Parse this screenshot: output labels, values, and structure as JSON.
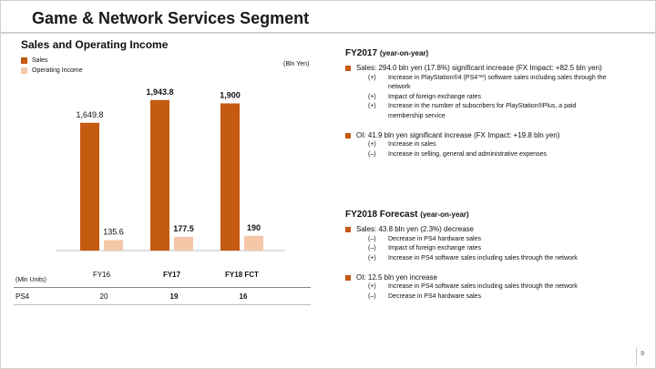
{
  "header": {
    "title": "Game & Network Services Segment"
  },
  "left": {
    "subtitle": "Sales and Operating Income",
    "legend": [
      {
        "label": "Sales",
        "color": "#c55a11"
      },
      {
        "label": "Operating Income",
        "color": "#f4c7a9"
      }
    ],
    "unit_note": "(Bln Yen)"
  },
  "chart_data": {
    "type": "bar",
    "categories": [
      "FY16",
      "FY17",
      "FY18 FCT"
    ],
    "series": [
      {
        "name": "Sales",
        "values": [
          1649.8,
          1943.8,
          1900
        ],
        "labels": [
          "1,649.8",
          "1,943.8",
          "1,900"
        ],
        "color": "#c55a11"
      },
      {
        "name": "Operating Income",
        "values": [
          135.6,
          177.5,
          190
        ],
        "labels": [
          "135.6",
          "177.5",
          "190"
        ],
        "color": "#f4c7a9"
      }
    ],
    "ylim": [
      0,
      2000
    ],
    "grid": false,
    "legend_position": "top-left"
  },
  "units_table": {
    "units_label": "(Mln Units)",
    "row_label": "PS4",
    "values": [
      "20",
      "19",
      "16"
    ]
  },
  "fy2017": {
    "title": "FY2017",
    "title_suffix": "(year-on-year)",
    "sales": {
      "text": "Sales: 294.0 bln yen (17.8%) significant increase (FX Impact: +82.5 bln yen)",
      "items": [
        {
          "sign": "(+)",
          "text": "Increase in PlayStation®4 (PS4™) software sales including sales through the"
        },
        {
          "sign": "",
          "text": "network"
        },
        {
          "sign": "(+)",
          "text": "Impact of foreign exchange rates"
        },
        {
          "sign": "(+)",
          "text": "Increase in the number of subscribers for PlayStation®Plus, a paid"
        },
        {
          "sign": "",
          "text": "membership service"
        }
      ]
    },
    "oi": {
      "text": "OI: 41.9 bln yen significant increase (FX Impact: +19.8 bln yen)",
      "items": [
        {
          "sign": "(+)",
          "text": "Increase in sales"
        },
        {
          "sign": "(–)",
          "text": "Increase in selling, general and administrative expenses"
        }
      ]
    }
  },
  "fy2018": {
    "title": "FY2018 Forecast",
    "title_suffix": "(year-on-year)",
    "sales": {
      "text": "Sales: 43.8 bln yen (2.3%) decrease",
      "items": [
        {
          "sign": "(–)",
          "text": "Decrease in PS4 hardware sales"
        },
        {
          "sign": "(–)",
          "text": "Impact of foreign exchange rates"
        },
        {
          "sign": "(+)",
          "text": "Increase in PS4 software sales including sales through the network"
        }
      ]
    },
    "oi": {
      "text": "OI: 12.5 bln yen increase",
      "items": [
        {
          "sign": "(+)",
          "text": "Increase in PS4 software sales including sales through the network"
        },
        {
          "sign": "(–)",
          "text": "Decrease in PS4 hardware sales"
        }
      ]
    }
  },
  "footer": {
    "page_number": "9"
  }
}
